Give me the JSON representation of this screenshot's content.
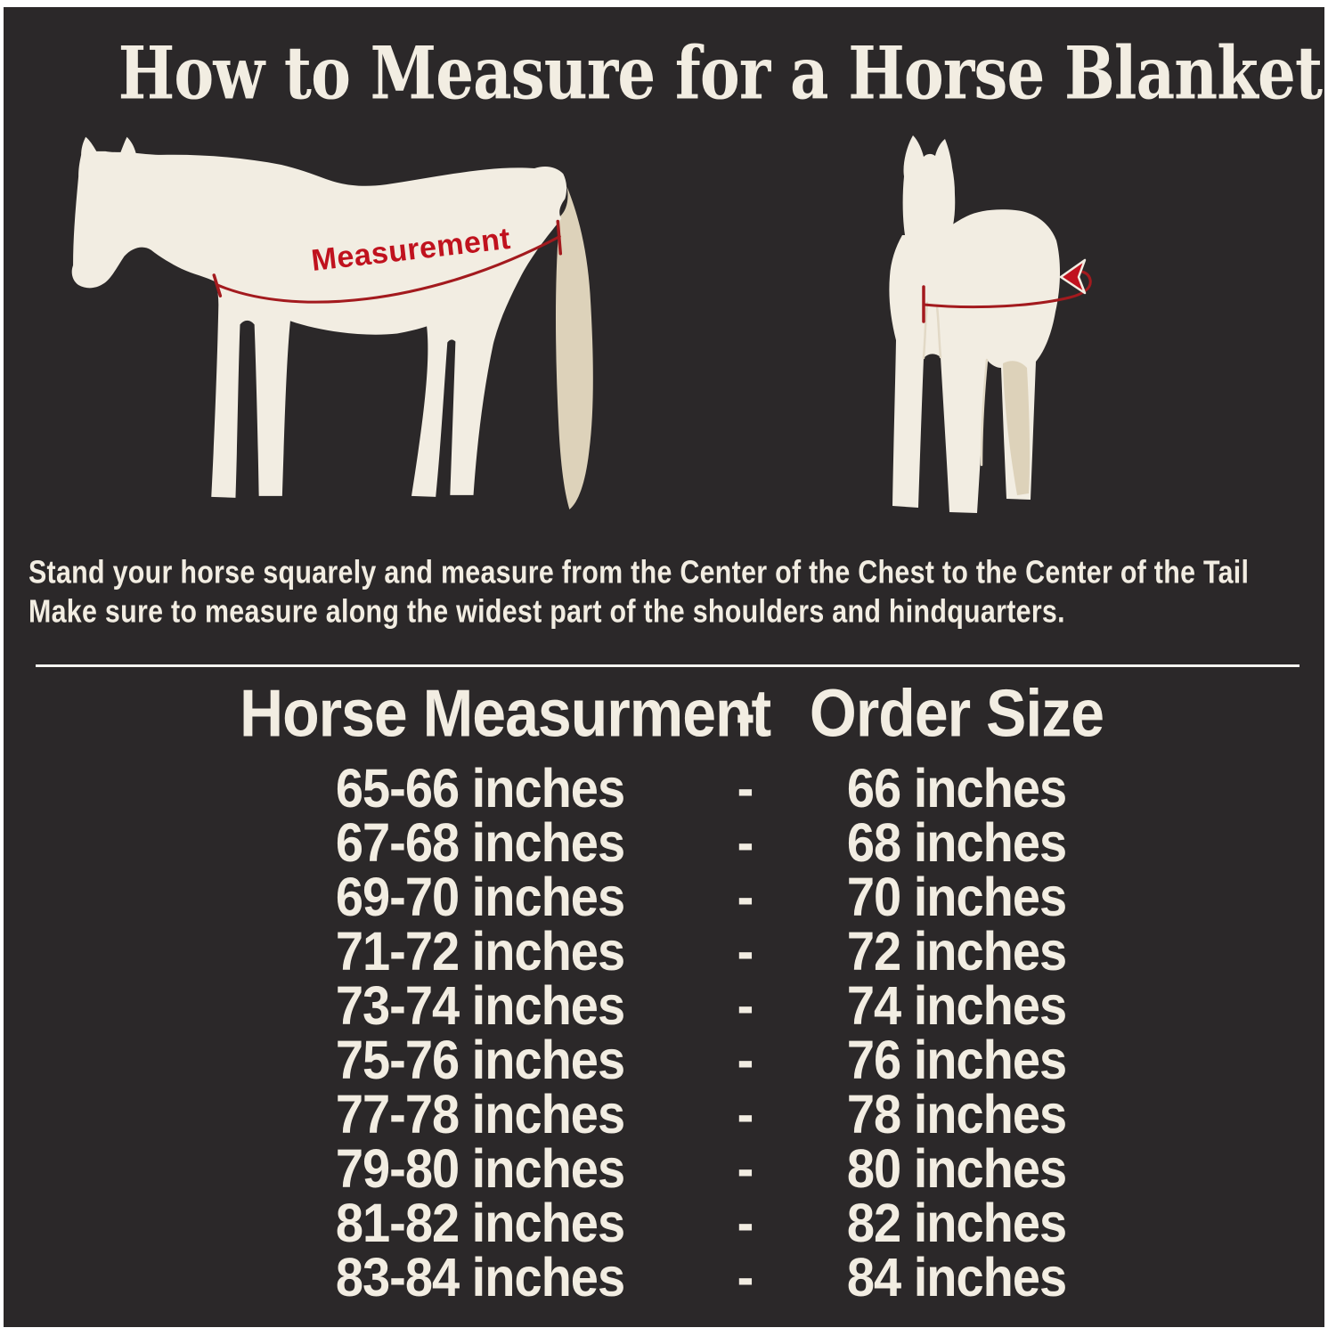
{
  "title": "How to Measure for a Horse Blanket",
  "side_figure": {
    "label": "Measurement",
    "description": "side-view horse silhouette with girth measurement line from chest to tail"
  },
  "front_figure": {
    "description": "front-view horse silhouette with measurement line wrapping around the body, arrow pointing back"
  },
  "instructions": {
    "line1": "Stand your horse squarely and measure from the Center of the Chest to the Center of the Tail",
    "line2": "Make sure to measure along the widest part of the shoulders and hindquarters."
  },
  "size_table": {
    "header": {
      "left": "Horse Measurment",
      "separator": "-",
      "right": "Order Size"
    },
    "rows": [
      {
        "measurement": "65-66 inches",
        "separator": "-",
        "order_size": "66 inches"
      },
      {
        "measurement": "67-68 inches",
        "separator": "-",
        "order_size": "68 inches"
      },
      {
        "measurement": "69-70 inches",
        "separator": "-",
        "order_size": "70 inches"
      },
      {
        "measurement": "71-72 inches",
        "separator": "-",
        "order_size": "72 inches"
      },
      {
        "measurement": "73-74 inches",
        "separator": "-",
        "order_size": "74 inches"
      },
      {
        "measurement": "75-76 inches",
        "separator": "-",
        "order_size": "76 inches"
      },
      {
        "measurement": "77-78 inches",
        "separator": "-",
        "order_size": "78 inches"
      },
      {
        "measurement": "79-80 inches",
        "separator": "-",
        "order_size": "80 inches"
      },
      {
        "measurement": "81-82 inches",
        "separator": "-",
        "order_size": "82 inches"
      },
      {
        "measurement": "83-84 inches",
        "separator": "-",
        "order_size": "84 inches"
      }
    ]
  },
  "colors": {
    "background": "#2b2829",
    "text_cream": "#f2ede2",
    "accent_red": "#c0121e",
    "line_red": "#a31a1e",
    "tail_beige": "#ddd2ba",
    "border_white": "#ffffff",
    "divider": "#f7f5f1"
  }
}
